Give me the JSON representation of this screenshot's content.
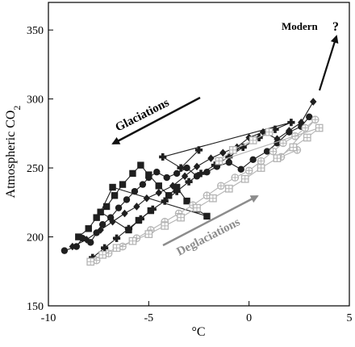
{
  "chart_data": {
    "type": "scatter",
    "xlabel": "°C",
    "ylabel_main": "Atmospheric  CO",
    "ylabel_sub": "2",
    "xlim": [
      -10,
      5
    ],
    "ylim": [
      150,
      370
    ],
    "x_ticks": [
      -10,
      -5,
      0,
      5
    ],
    "y_ticks": [
      150,
      200,
      250,
      300,
      350
    ],
    "grid": false,
    "annotations": {
      "glaciations": "Glaciations",
      "deglaciations": "Deglaciations",
      "modern": "Modern",
      "question": "?"
    },
    "colors": {
      "dark_series": "#1f1f1f",
      "light_series": "#b4b4b4",
      "glaciation_arrow": "#111111",
      "deglaciation_arrow": "#8c8c8c"
    },
    "series": [
      {
        "marker": "circle",
        "color": "#1f1f1f",
        "points": [
          [
            -9.2,
            190
          ],
          [
            -8.6,
            193
          ],
          [
            -8.3,
            199
          ],
          [
            -7.9,
            196
          ],
          [
            -7.6,
            203
          ],
          [
            -7.3,
            209
          ],
          [
            -6.9,
            214
          ],
          [
            -6.5,
            221
          ],
          [
            -6.1,
            227
          ],
          [
            -5.7,
            233
          ],
          [
            -5.3,
            238
          ],
          [
            -5.0,
            243
          ],
          [
            -4.6,
            247
          ],
          [
            -4.1,
            243
          ],
          [
            -3.6,
            246
          ],
          [
            -3.1,
            250
          ],
          [
            -2.6,
            244
          ],
          [
            -2.1,
            247
          ],
          [
            -1.6,
            251
          ],
          [
            -1.0,
            254
          ],
          [
            -0.4,
            249
          ],
          [
            0.2,
            256
          ],
          [
            0.9,
            262
          ],
          [
            1.4,
            268
          ],
          [
            2.0,
            276
          ],
          [
            2.6,
            280
          ],
          [
            3.0,
            287
          ]
        ]
      },
      {
        "marker": "square",
        "color": "#1f1f1f",
        "points": [
          [
            -8.5,
            200
          ],
          [
            -8.0,
            206
          ],
          [
            -7.6,
            214
          ],
          [
            -7.1,
            222
          ],
          [
            -6.7,
            230
          ],
          [
            -6.3,
            238
          ],
          [
            -5.8,
            246
          ],
          [
            -5.4,
            252
          ],
          [
            -5.0,
            245
          ],
          [
            -4.5,
            237
          ],
          [
            -4.0,
            230
          ],
          [
            -3.6,
            236
          ],
          [
            -3.1,
            226
          ],
          [
            -2.6,
            220
          ],
          [
            -2.1,
            215
          ],
          [
            -6.8,
            236
          ],
          [
            -7.4,
            218
          ],
          [
            -6.0,
            205
          ],
          [
            -5.5,
            212
          ],
          [
            -4.9,
            219
          ]
        ]
      },
      {
        "marker": "diamond",
        "color": "#1f1f1f",
        "points": [
          [
            -8.8,
            193
          ],
          [
            -8.1,
            198
          ],
          [
            -7.4,
            205
          ],
          [
            -6.8,
            211
          ],
          [
            -6.2,
            217
          ],
          [
            -5.6,
            222
          ],
          [
            -5.1,
            228
          ],
          [
            -4.5,
            232
          ],
          [
            -3.8,
            237
          ],
          [
            -3.2,
            244
          ],
          [
            -2.6,
            251
          ],
          [
            -1.9,
            257
          ],
          [
            -1.3,
            261
          ],
          [
            -0.6,
            265
          ],
          [
            0.0,
            272
          ],
          [
            0.7,
            276
          ],
          [
            1.4,
            271
          ],
          [
            2.0,
            277
          ],
          [
            2.6,
            283
          ],
          [
            3.2,
            298
          ]
        ]
      },
      {
        "marker": "cross",
        "color": "#1f1f1f",
        "points": [
          [
            -7.8,
            185
          ],
          [
            -7.2,
            192
          ],
          [
            -6.6,
            199
          ],
          [
            -6.0,
            206
          ],
          [
            -5.4,
            213
          ],
          [
            -4.8,
            220
          ],
          [
            -4.2,
            226
          ],
          [
            -3.6,
            233
          ],
          [
            -3.0,
            240
          ],
          [
            -2.4,
            246
          ],
          [
            -1.7,
            252
          ],
          [
            -1.0,
            258
          ],
          [
            -0.3,
            265
          ],
          [
            0.5,
            272
          ],
          [
            1.3,
            278
          ],
          [
            2.1,
            283
          ],
          [
            -4.3,
            258
          ],
          [
            -3.4,
            250
          ],
          [
            -2.5,
            263
          ]
        ]
      },
      {
        "marker": "open-circle",
        "color": "#b4b4b4",
        "points": [
          [
            -7.6,
            183
          ],
          [
            -7.0,
            188
          ],
          [
            -6.3,
            193
          ],
          [
            -5.6,
            199
          ],
          [
            -4.9,
            205
          ],
          [
            -4.2,
            211
          ],
          [
            -3.5,
            217
          ],
          [
            -2.8,
            223
          ],
          [
            -2.1,
            230
          ],
          [
            -1.4,
            237
          ],
          [
            -0.7,
            243
          ],
          [
            0.0,
            248
          ],
          [
            0.6,
            255
          ],
          [
            1.2,
            262
          ],
          [
            1.7,
            268
          ],
          [
            2.3,
            273
          ],
          [
            2.8,
            279
          ],
          [
            3.3,
            285
          ],
          [
            1.6,
            258
          ],
          [
            2.4,
            263
          ]
        ]
      },
      {
        "marker": "open-square",
        "color": "#b4b4b4",
        "points": [
          [
            -7.9,
            182
          ],
          [
            -7.3,
            187
          ],
          [
            -6.6,
            192
          ],
          [
            -5.8,
            197
          ],
          [
            -5.0,
            202
          ],
          [
            -4.2,
            208
          ],
          [
            -3.4,
            214
          ],
          [
            -2.6,
            221
          ],
          [
            -1.8,
            228
          ],
          [
            -1.0,
            235
          ],
          [
            -0.2,
            242
          ],
          [
            0.6,
            250
          ],
          [
            1.4,
            257
          ],
          [
            2.2,
            265
          ],
          [
            2.9,
            272
          ],
          [
            3.5,
            279
          ],
          [
            -1.5,
            255
          ],
          [
            -0.8,
            263
          ],
          [
            0.2,
            270
          ],
          [
            1.0,
            276
          ]
        ]
      }
    ]
  }
}
